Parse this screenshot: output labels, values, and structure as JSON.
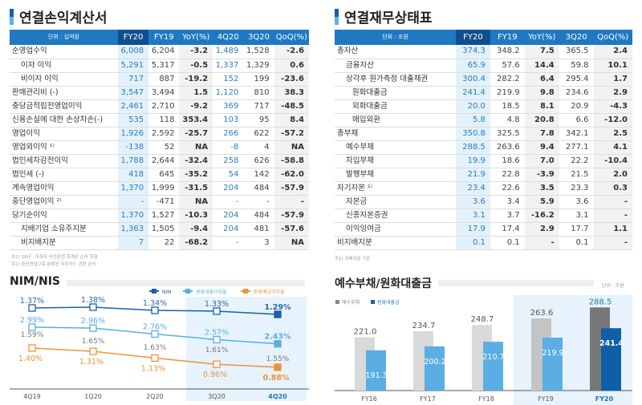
{
  "income": {
    "title": "연결손익계산서",
    "columns": [
      "단위 : 십억원",
      "FY20",
      "FY19",
      "YoY(%)",
      "4Q20",
      "3Q20",
      "QoQ(%)"
    ],
    "rows": [
      {
        "label": "순영업수익",
        "level": 0,
        "v": [
          "6,008",
          "6,204",
          "-3.2",
          "1,489",
          "1,528",
          "-2.6"
        ]
      },
      {
        "label": "이자 이익",
        "level": 1,
        "v": [
          "5,291",
          "5,317",
          "-0.5",
          "1,337",
          "1,329",
          "0.6"
        ]
      },
      {
        "label": "비이자 이익",
        "level": 1,
        "v": [
          "717",
          "887",
          "-19.2",
          "152",
          "199",
          "-23.6"
        ]
      },
      {
        "label": "판매관리비 (-)",
        "level": 0,
        "v": [
          "3,547",
          "3,494",
          "1.5",
          "1,120",
          "810",
          "38.3"
        ]
      },
      {
        "label": "충당금적립전영업이익",
        "level": 0,
        "v": [
          "2,461",
          "2,710",
          "-9.2",
          "369",
          "717",
          "-48.5"
        ]
      },
      {
        "label": "신용손실에 대한 손상차손(-)",
        "level": 0,
        "v": [
          "535",
          "118",
          "353.4",
          "103",
          "95",
          "8.4"
        ]
      },
      {
        "label": "영업이익",
        "level": 0,
        "v": [
          "1,926",
          "2,592",
          "-25.7",
          "266",
          "622",
          "-57.2"
        ]
      },
      {
        "label": "영업외이익 ¹⁾",
        "level": 0,
        "v": [
          "-138",
          "52",
          "NA",
          "-8",
          "4",
          "NA"
        ]
      },
      {
        "label": "법인세차감전이익",
        "level": 0,
        "v": [
          "1,788",
          "2,644",
          "-32.4",
          "258",
          "626",
          "-58.8"
        ]
      },
      {
        "label": "법인세 (-)",
        "level": 0,
        "v": [
          "418",
          "645",
          "-35.2",
          "54",
          "142",
          "-62.0"
        ]
      },
      {
        "label": "계속영업이익",
        "level": 0,
        "v": [
          "1,370",
          "1,999",
          "-31.5",
          "204",
          "484",
          "-57.9"
        ]
      },
      {
        "label": "중단영업이익 ²⁾",
        "level": 0,
        "v": [
          "-",
          "-471",
          "NA",
          "-",
          "-",
          "-"
        ]
      },
      {
        "label": "당기순이익",
        "level": 0,
        "v": [
          "1,370",
          "1,527",
          "-10.3",
          "204",
          "484",
          "-57.9"
        ]
      },
      {
        "label": "지배기업 소유주지분",
        "level": 1,
        "v": [
          "1,363",
          "1,505",
          "-9.4",
          "204",
          "481",
          "-57.6"
        ]
      },
      {
        "label": "비지배지분",
        "level": 1,
        "v": [
          "7",
          "22",
          "-68.2",
          "-",
          "3",
          "NA"
        ]
      }
    ],
    "notes": [
      "주1) 19년 : 자회사 이전관련 회계상 손익 포함",
      "주2) 중단영업으로 분류된 우리카드 관련 손익"
    ]
  },
  "balance": {
    "title": "연결재무상태표",
    "columns": [
      "단위 : 조원",
      "FY20",
      "FY19",
      "YoY(%)",
      "3Q20",
      "QoQ(%)"
    ],
    "rows": [
      {
        "label": "총자산",
        "level": 0,
        "v": [
          "374.3",
          "348.2",
          "7.5",
          "365.5",
          "2.4"
        ]
      },
      {
        "label": "금융자산",
        "level": 1,
        "v": [
          "65.9",
          "57.6",
          "14.4",
          "59.8",
          "10.1"
        ]
      },
      {
        "label": "상각후 원가측정 대출채권",
        "level": 1,
        "v": [
          "300.4",
          "282.2",
          "6.4",
          "295.4",
          "1.7"
        ]
      },
      {
        "label": "원화대출금",
        "level": 2,
        "v": [
          "241.4",
          "219.9",
          "9.8",
          "234.6",
          "2.9"
        ]
      },
      {
        "label": "외화대출금",
        "level": 2,
        "v": [
          "20.0",
          "18.5",
          "8.1",
          "20.9",
          "-4.3"
        ]
      },
      {
        "label": "매입외환",
        "level": 2,
        "v": [
          "5.8",
          "4.8",
          "20.8",
          "6.6",
          "-12.0"
        ]
      },
      {
        "label": "총부채",
        "level": 0,
        "v": [
          "350.8",
          "325.5",
          "7.8",
          "342.1",
          "2.5"
        ]
      },
      {
        "label": "예수부채",
        "level": 1,
        "v": [
          "288.5",
          "263.6",
          "9.4",
          "277.1",
          "4.1"
        ]
      },
      {
        "label": "차입부채",
        "level": 1,
        "v": [
          "19.9",
          "18.6",
          "7.0",
          "22.2",
          "-10.4"
        ]
      },
      {
        "label": "발행부채",
        "level": 1,
        "v": [
          "21.9",
          "22.8",
          "-3.9",
          "21.5",
          "2.0"
        ]
      },
      {
        "label": "자기자본 ¹⁾",
        "level": 0,
        "v": [
          "23.4",
          "22.6",
          "3.5",
          "23.3",
          "0.3"
        ]
      },
      {
        "label": "자본금",
        "level": 1,
        "v": [
          "3.6",
          "3.4",
          "5.9",
          "3.6",
          "-"
        ]
      },
      {
        "label": "신종자본증권",
        "level": 1,
        "v": [
          "3.1",
          "3.7",
          "-16.2",
          "3.1",
          "-"
        ]
      },
      {
        "label": "이익잉여금",
        "level": 1,
        "v": [
          "17.9",
          "17.4",
          "2.9",
          "17.7",
          "1.1"
        ]
      },
      {
        "label": "비지배지분",
        "level": 0,
        "v": [
          "0.1",
          "0.1",
          "-",
          "0.1",
          "-"
        ]
      }
    ],
    "notes": [
      "주1) 지배지분 기준"
    ]
  },
  "chart_data": [
    {
      "type": "line",
      "title": "NIM/NIS",
      "categories": [
        "4Q19",
        "1Q20",
        "2Q20",
        "3Q20",
        "4Q20"
      ],
      "series": [
        {
          "name": "NIM",
          "color": "#1a5fa8",
          "values": [
            1.37,
            1.38,
            1.34,
            1.33,
            1.29
          ]
        },
        {
          "name": "원화대출이자율",
          "color": "#5aaee3",
          "values": [
            2.99,
            2.96,
            2.76,
            2.57,
            2.43
          ]
        },
        {
          "name": "원화예금이자율",
          "color": "#f0913a",
          "values": [
            1.4,
            1.31,
            1.13,
            0.96,
            0.88
          ]
        }
      ],
      "nis_labels": [
        "1.59%",
        "1.65%",
        "1.63%",
        "1.61%",
        "1.55%"
      ],
      "unit": "%"
    },
    {
      "type": "bar",
      "title": "예수부채/원화대출금",
      "unit_label": "단위 : 조원",
      "categories": [
        "FY16",
        "FY17",
        "FY18",
        "FY19",
        "FY20"
      ],
      "series": [
        {
          "name": "예수부채",
          "color": "#d9d9d9",
          "values": [
            221.0,
            234.7,
            248.7,
            263.6,
            288.5
          ]
        },
        {
          "name": "원화대출금",
          "color": "#5aaee3",
          "values": [
            191.3,
            200.2,
            210.7,
            219.9,
            241.4
          ]
        }
      ]
    }
  ]
}
